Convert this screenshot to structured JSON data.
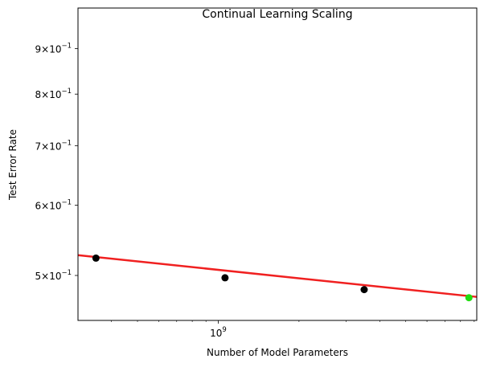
{
  "chart_data": {
    "type": "scatter",
    "title": "Continual Learning Scaling",
    "xlabel": "Number of Model Parameters",
    "ylabel": "Test Error Rate",
    "xscale": "log",
    "yscale": "log",
    "xlim": [
      300000000,
      9200000000
    ],
    "ylim": [
      0.445,
      1.0
    ],
    "grid": false,
    "x_ticks": [
      {
        "value": 1000000000,
        "base": "10",
        "exp": "9"
      }
    ],
    "y_ticks": [
      {
        "value": 0.5,
        "mant": "5",
        "base": "10",
        "exp": "−1"
      },
      {
        "value": 0.6,
        "mant": "6",
        "base": "10",
        "exp": "−1"
      },
      {
        "value": 0.7,
        "mant": "7",
        "base": "10",
        "exp": "−1"
      },
      {
        "value": 0.8,
        "mant": "8",
        "base": "10",
        "exp": "−1"
      },
      {
        "value": 0.9,
        "mant": "9",
        "base": "10",
        "exp": "−1"
      }
    ],
    "series": [
      {
        "kind": "scatter",
        "color": "#000000",
        "points": [
          {
            "x": 350000000,
            "y": 0.523
          },
          {
            "x": 1060000000,
            "y": 0.497
          },
          {
            "x": 3500000000,
            "y": 0.482
          }
        ]
      },
      {
        "kind": "scatter",
        "color": "#22dd11",
        "points": [
          {
            "x": 8600000000,
            "y": 0.472
          }
        ]
      },
      {
        "kind": "fit-line",
        "color": "#f02020",
        "points": [
          {
            "x": 300000000,
            "y": 0.527
          },
          {
            "x": 9200000000,
            "y": 0.473
          }
        ]
      }
    ]
  }
}
